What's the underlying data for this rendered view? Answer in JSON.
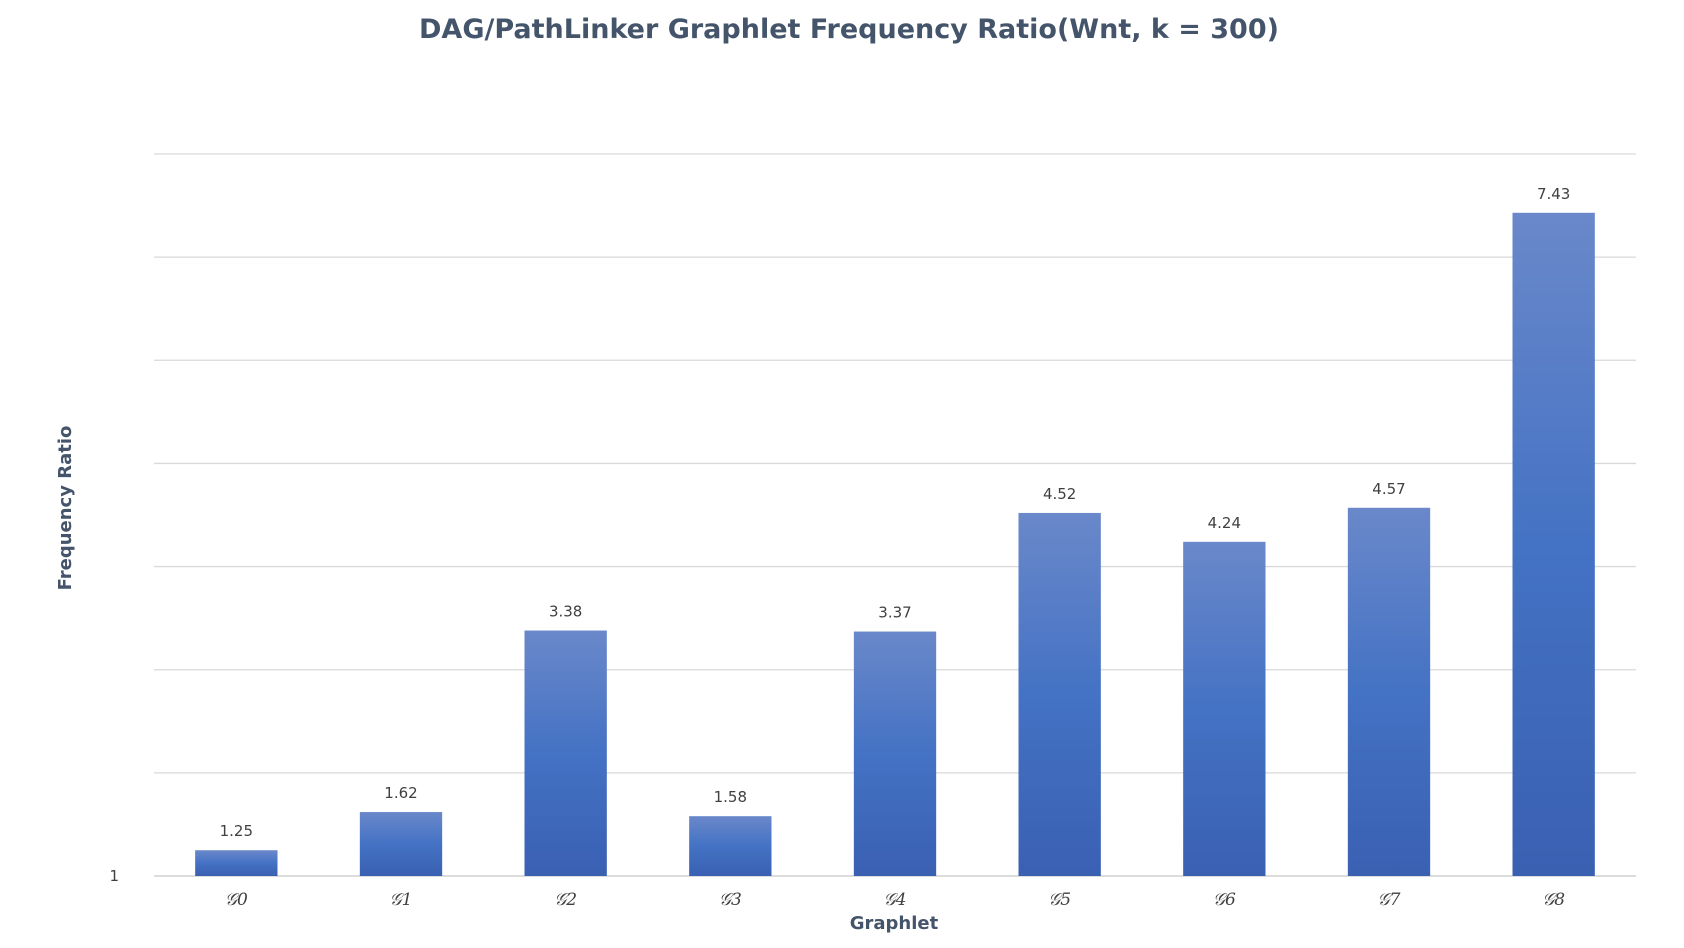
{
  "chart_data": {
    "type": "bar",
    "title": "DAG/PathLinker Graphlet Frequency Ratio(Wnt, k = 300)",
    "xlabel": "Graphlet",
    "ylabel": "Frequency Ratio",
    "categories": [
      "𝒢0",
      "𝒢1",
      "𝒢2",
      "𝒢3",
      "𝒢4",
      "𝒢5",
      "𝒢6",
      "𝒢7",
      "𝒢8"
    ],
    "values": [
      1.25,
      1.62,
      3.38,
      1.58,
      3.37,
      4.52,
      4.24,
      4.57,
      7.43
    ],
    "data_labels": [
      "1.25",
      "1.62",
      "3.38",
      "1.58",
      "3.37",
      "4.52",
      "4.24",
      "4.57",
      "7.43"
    ],
    "y_tick_labels": [
      "1"
    ],
    "ylim": [
      1,
      8
    ],
    "grid": true,
    "legend": "none",
    "bar_color_top": "#6a88ca",
    "bar_color_mid": "#4472c4",
    "bar_color_bottom": "#3a60b2"
  }
}
